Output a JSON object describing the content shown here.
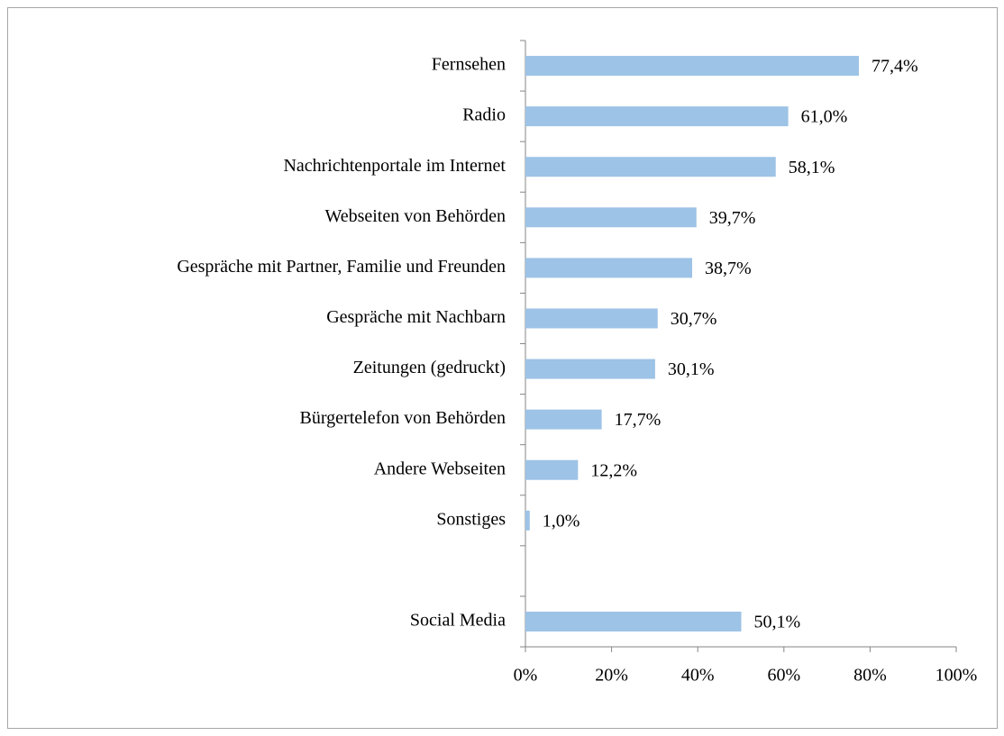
{
  "chart_data": {
    "type": "bar",
    "orientation": "horizontal",
    "categories": [
      "Fernsehen",
      "Radio",
      "Nachrichtenportale im Internet",
      "Webseiten von Behörden",
      "Gespräche mit Partner, Familie und Freunden",
      "Gespräche mit Nachbarn",
      "Zeitungen (gedruckt)",
      "Bürgertelefon von Behörden",
      "Andere Webseiten",
      "Sonstiges",
      null,
      "Social Media"
    ],
    "values": [
      77.4,
      61.0,
      58.1,
      39.7,
      38.7,
      30.7,
      30.1,
      17.7,
      12.2,
      1.0,
      null,
      50.1
    ],
    "value_labels": [
      "77,4%",
      "61,0%",
      "58,1%",
      "39,7%",
      "38,7%",
      "30,7%",
      "30,1%",
      "17,7%",
      "12,2%",
      "1,0%",
      null,
      "50,1%"
    ],
    "color": "#9dc3e6",
    "xlim": [
      0,
      100
    ],
    "xticks": [
      {
        "value": 0,
        "label": "0%"
      },
      {
        "value": 20,
        "label": "20%"
      },
      {
        "value": 40,
        "label": "40%"
      },
      {
        "value": 60,
        "label": "60%"
      },
      {
        "value": 80,
        "label": "80%"
      },
      {
        "value": 100,
        "label": "100%"
      }
    ],
    "grid": false
  }
}
